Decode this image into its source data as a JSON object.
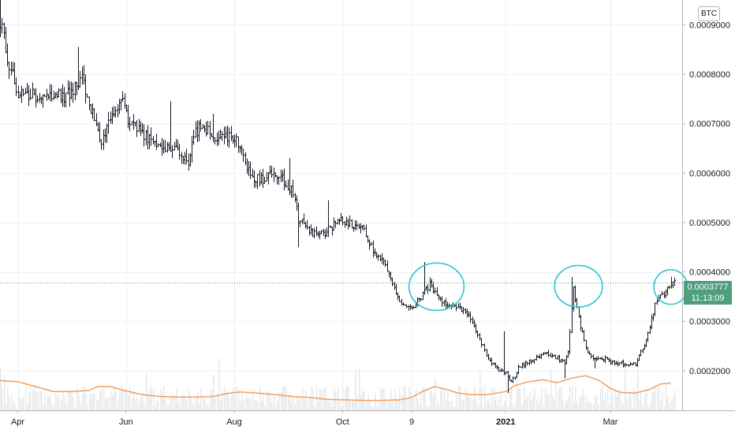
{
  "currency_badge": "BTC",
  "last_price": {
    "value": "0.0003777",
    "countdown": "11:13:09",
    "color": "#4f9e80"
  },
  "colors": {
    "candle": "#131722",
    "volume_ma": "#f59d5a",
    "annotation_circle": "#2ec4d1",
    "grid": "#eef0f3"
  },
  "chart_data": {
    "type": "candlestick",
    "ylim": [
      0.00012,
      0.00095
    ],
    "y_ticks": [
      {
        "value": 0.0002,
        "label": "0.0002000"
      },
      {
        "value": 0.0003,
        "label": "0.0003000"
      },
      {
        "value": 0.0004,
        "label": "0.0004000"
      },
      {
        "value": 0.0005,
        "label": "0.0005000"
      },
      {
        "value": 0.0006,
        "label": "0.0006000"
      },
      {
        "value": 0.0007,
        "label": "0.0007000"
      },
      {
        "value": 0.0008,
        "label": "0.0008000"
      },
      {
        "value": 0.0009,
        "label": "0.0009000"
      }
    ],
    "x_ticks": [
      {
        "label": "Apr",
        "day": 10,
        "bold": false
      },
      {
        "label": "Jun",
        "day": 71,
        "bold": false
      },
      {
        "label": "Aug",
        "day": 132,
        "bold": false
      },
      {
        "label": "Oct",
        "day": 193,
        "bold": false
      },
      {
        "label": "9",
        "day": 232,
        "bold": false
      },
      {
        "label": "2021",
        "day": 285,
        "bold": true
      },
      {
        "label": "Mar",
        "day": 344,
        "bold": false
      }
    ],
    "price_anchors": [
      [
        0,
        0.00091
      ],
      [
        5,
        0.00082
      ],
      [
        10,
        0.000765
      ],
      [
        15,
        0.000755
      ],
      [
        22,
        0.00076
      ],
      [
        30,
        0.000755
      ],
      [
        36,
        0.000755
      ],
      [
        42,
        0.000775
      ],
      [
        46,
        0.000795
      ],
      [
        50,
        0.00074
      ],
      [
        55,
        0.00068
      ],
      [
        58,
        0.000665
      ],
      [
        63,
        0.000715
      ],
      [
        68,
        0.000755
      ],
      [
        72,
        0.000705
      ],
      [
        78,
        0.000685
      ],
      [
        85,
        0.000665
      ],
      [
        92,
        0.000655
      ],
      [
        100,
        0.000645
      ],
      [
        106,
        0.000625
      ],
      [
        110,
        0.000685
      ],
      [
        115,
        0.000695
      ],
      [
        120,
        0.000665
      ],
      [
        128,
        0.000675
      ],
      [
        133,
        0.000665
      ],
      [
        138,
        0.000625
      ],
      [
        142,
        0.000595
      ],
      [
        146,
        0.000585
      ],
      [
        152,
        0.000595
      ],
      [
        157,
        0.000595
      ],
      [
        162,
        0.000575
      ],
      [
        166,
        0.000555
      ],
      [
        168,
        0.000505
      ],
      [
        172,
        0.000495
      ],
      [
        176,
        0.000475
      ],
      [
        182,
        0.000475
      ],
      [
        188,
        0.000495
      ],
      [
        193,
        0.000505
      ],
      [
        198,
        0.000495
      ],
      [
        205,
        0.000485
      ],
      [
        210,
        0.000445
      ],
      [
        215,
        0.000425
      ],
      [
        220,
        0.000385
      ],
      [
        225,
        0.000335
      ],
      [
        230,
        0.000325
      ],
      [
        234,
        0.000335
      ],
      [
        238,
        0.000355
      ],
      [
        242,
        0.000375
      ],
      [
        246,
        0.000355
      ],
      [
        250,
        0.000335
      ],
      [
        258,
        0.000325
      ],
      [
        264,
        0.000315
      ],
      [
        270,
        0.000265
      ],
      [
        275,
        0.000225
      ],
      [
        280,
        0.000205
      ],
      [
        285,
        0.000195
      ],
      [
        288,
        0.000175
      ],
      [
        292,
        0.000205
      ],
      [
        296,
        0.000215
      ],
      [
        302,
        0.000225
      ],
      [
        308,
        0.000235
      ],
      [
        314,
        0.000225
      ],
      [
        318,
        0.000215
      ],
      [
        320,
        0.000235
      ],
      [
        323,
        0.000365
      ],
      [
        326,
        0.000305
      ],
      [
        330,
        0.000245
      ],
      [
        334,
        0.000225
      ],
      [
        340,
        0.000225
      ],
      [
        346,
        0.000215
      ],
      [
        352,
        0.000215
      ],
      [
        358,
        0.000215
      ],
      [
        363,
        0.000255
      ],
      [
        367,
        0.000305
      ],
      [
        370,
        0.000345
      ],
      [
        374,
        0.000355
      ],
      [
        378,
        0.000375
      ],
      [
        380,
        0.000378
      ]
    ],
    "spikes": [
      [
        0,
        0.00095
      ],
      [
        44,
        0.000855
      ],
      [
        96,
        0.000745
      ],
      [
        120,
        0.00072
      ],
      [
        163,
        0.00063
      ],
      [
        168,
        0.00045
      ],
      [
        185,
        0.000545
      ],
      [
        196,
        0.000505
      ],
      [
        239,
        0.00042
      ],
      [
        284,
        0.00028
      ],
      [
        286,
        0.000155
      ],
      [
        318,
        0.000185
      ],
      [
        322,
        0.00039
      ],
      [
        335,
        0.000205
      ],
      [
        378,
        0.00039
      ]
    ],
    "volume_ma": [
      [
        0,
        0.00018
      ],
      [
        10,
        0.000178
      ],
      [
        20,
        0.000168
      ],
      [
        30,
        0.000158
      ],
      [
        40,
        0.000158
      ],
      [
        50,
        0.00016
      ],
      [
        55,
        0.000168
      ],
      [
        62,
        0.000168
      ],
      [
        70,
        0.00016
      ],
      [
        80,
        0.000152
      ],
      [
        90,
        0.000148
      ],
      [
        100,
        0.000147
      ],
      [
        110,
        0.000147
      ],
      [
        120,
        0.000148
      ],
      [
        128,
        0.000154
      ],
      [
        135,
        0.000157
      ],
      [
        145,
        0.000155
      ],
      [
        155,
        0.000152
      ],
      [
        165,
        0.000148
      ],
      [
        175,
        0.000146
      ],
      [
        185,
        0.000142
      ],
      [
        195,
        0.000141
      ],
      [
        205,
        0.00014
      ],
      [
        215,
        0.00014
      ],
      [
        225,
        0.000141
      ],
      [
        232,
        0.000146
      ],
      [
        238,
        0.000158
      ],
      [
        245,
        0.000168
      ],
      [
        252,
        0.000162
      ],
      [
        258,
        0.000155
      ],
      [
        265,
        0.000152
      ],
      [
        275,
        0.000152
      ],
      [
        285,
        0.000158
      ],
      [
        290,
        0.00017
      ],
      [
        298,
        0.000178
      ],
      [
        306,
        0.000182
      ],
      [
        314,
        0.000176
      ],
      [
        322,
        0.000185
      ],
      [
        330,
        0.00019
      ],
      [
        338,
        0.00018
      ],
      [
        344,
        0.000164
      ],
      [
        350,
        0.000156
      ],
      [
        358,
        0.000155
      ],
      [
        366,
        0.000162
      ],
      [
        372,
        0.000173
      ],
      [
        378,
        0.000175
      ]
    ],
    "annotations": [
      {
        "shape": "circle",
        "cx": 246,
        "cy": 0.00037,
        "rx": 15.5,
        "ry": 4.8e-05
      },
      {
        "shape": "circle",
        "cx": 326,
        "cy": 0.000371,
        "rx": 13.5,
        "ry": 4.2e-05
      },
      {
        "shape": "circle",
        "cx": 378,
        "cy": 0.0003695,
        "rx": 9.5,
        "ry": 3.5e-05
      }
    ],
    "last_price_line": 0.0003777,
    "day_count": 380
  }
}
